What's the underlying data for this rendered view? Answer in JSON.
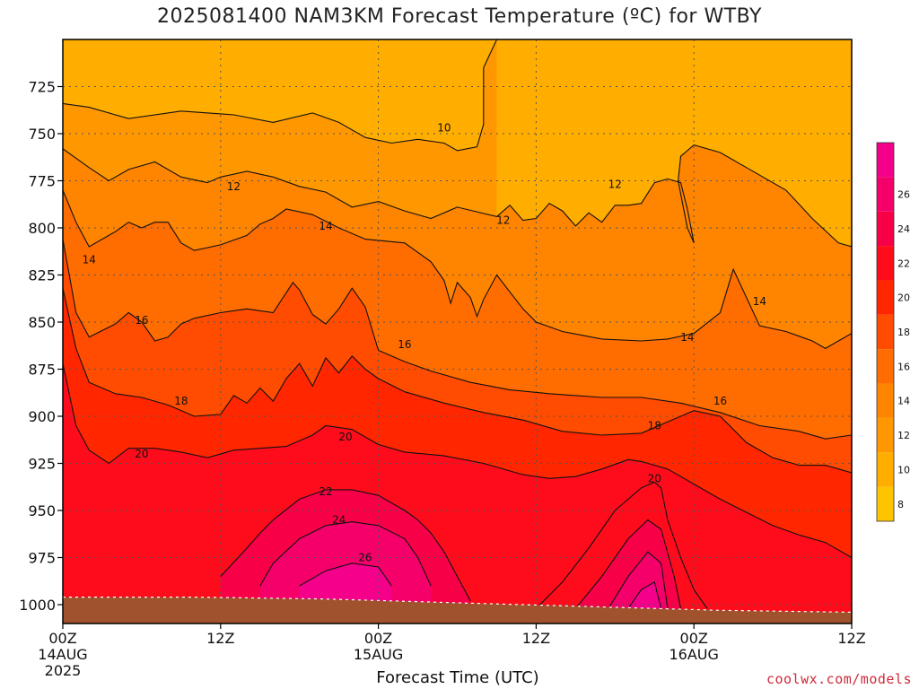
{
  "chart_data": {
    "type": "heatmap",
    "title": "2025081400 NAM3KM Forecast Temperature (ºC) for WTBY",
    "xlabel": "Forecast Time (UTC)",
    "ylabel": "",
    "y_axis": {
      "unit": "hPa",
      "inverted": true,
      "range": [
        700,
        1010
      ],
      "ticks": [
        725,
        750,
        775,
        800,
        825,
        850,
        875,
        900,
        925,
        950,
        975,
        1000
      ]
    },
    "x_axis": {
      "range_hours": [
        0,
        60
      ],
      "ticks": [
        {
          "hour": 0,
          "line1": "00Z",
          "line2": "14AUG",
          "line3": "2025"
        },
        {
          "hour": 12,
          "line1": "12Z",
          "line2": "",
          "line3": ""
        },
        {
          "hour": 24,
          "line1": "00Z",
          "line2": "15AUG",
          "line3": ""
        },
        {
          "hour": 36,
          "line1": "12Z",
          "line2": "",
          "line3": ""
        },
        {
          "hour": 48,
          "line1": "00Z",
          "line2": "16AUG",
          "line3": ""
        },
        {
          "hour": 60,
          "line1": "12Z",
          "line2": "",
          "line3": ""
        }
      ]
    },
    "grid": true,
    "colorbar": {
      "levels": [
        6,
        8,
        10,
        12,
        14,
        16,
        18,
        20,
        22,
        24,
        26,
        28
      ],
      "labels": [
        8,
        10,
        12,
        14,
        16,
        18,
        20,
        22,
        24,
        26
      ],
      "colors": [
        "#ffc400",
        "#ffae00",
        "#ff9800",
        "#ff8400",
        "#ff6c00",
        "#ff4c00",
        "#ff2600",
        "#ff0c1c",
        "#f80048",
        "#f5006a",
        "#f5008a"
      ]
    },
    "isotherms": [
      {
        "value": 10,
        "points": [
          [
            0,
            734
          ],
          [
            2,
            736
          ],
          [
            5,
            742
          ],
          [
            9,
            738
          ],
          [
            13,
            740
          ],
          [
            16,
            744
          ],
          [
            19,
            739
          ],
          [
            21,
            744
          ],
          [
            23,
            752
          ],
          [
            25,
            755
          ],
          [
            27,
            753
          ],
          [
            29,
            755
          ],
          [
            30,
            759
          ],
          [
            31.5,
            757
          ],
          [
            32,
            745
          ],
          [
            32,
            715
          ],
          [
            33,
            700
          ]
        ]
      },
      {
        "value": 12,
        "points": [
          [
            0,
            758
          ],
          [
            2,
            768
          ],
          [
            3.5,
            775
          ],
          [
            5,
            769
          ],
          [
            7,
            765
          ],
          [
            9,
            773
          ],
          [
            11,
            776
          ],
          [
            12,
            773
          ],
          [
            14,
            770
          ],
          [
            16,
            773
          ],
          [
            18,
            778
          ],
          [
            20,
            781
          ],
          [
            22,
            789
          ],
          [
            24,
            786
          ],
          [
            26,
            791
          ],
          [
            28,
            795
          ],
          [
            30,
            789
          ],
          [
            33,
            794
          ],
          [
            34,
            788
          ],
          [
            35,
            796
          ],
          [
            36,
            795
          ],
          [
            37,
            787
          ],
          [
            38,
            791
          ],
          [
            39,
            799
          ],
          [
            40,
            792
          ],
          [
            41,
            797
          ],
          [
            42,
            788
          ],
          [
            43,
            788
          ],
          [
            44,
            787
          ],
          [
            45,
            776
          ],
          [
            46,
            774
          ],
          [
            47,
            776
          ],
          [
            47.5,
            790
          ],
          [
            48,
            808
          ],
          [
            47.5,
            800
          ],
          [
            46.8,
            775
          ],
          [
            47,
            762
          ],
          [
            48,
            756
          ],
          [
            50,
            760
          ],
          [
            52,
            768
          ],
          [
            55,
            780
          ],
          [
            57,
            795
          ],
          [
            59,
            808
          ],
          [
            60,
            810
          ]
        ]
      },
      {
        "value": 14,
        "points": [
          [
            0,
            780
          ],
          [
            1,
            797
          ],
          [
            2,
            810
          ],
          [
            4,
            802
          ],
          [
            5,
            797
          ],
          [
            6,
            800
          ],
          [
            7,
            797
          ],
          [
            8,
            797
          ],
          [
            9,
            808
          ],
          [
            10,
            812
          ],
          [
            12,
            809
          ],
          [
            14,
            804
          ],
          [
            15,
            798
          ],
          [
            16,
            795
          ],
          [
            17,
            790
          ],
          [
            19,
            793
          ],
          [
            21,
            800
          ],
          [
            23,
            806
          ],
          [
            26,
            808
          ],
          [
            28,
            818
          ],
          [
            29,
            828
          ],
          [
            29.5,
            840
          ],
          [
            30,
            829
          ],
          [
            31,
            837
          ],
          [
            31.5,
            847
          ],
          [
            32,
            838
          ],
          [
            33,
            825
          ],
          [
            34,
            834
          ],
          [
            35,
            843
          ],
          [
            36,
            850
          ],
          [
            38,
            855
          ],
          [
            41,
            859
          ],
          [
            44,
            860
          ],
          [
            46,
            859
          ],
          [
            48,
            856
          ],
          [
            50,
            845
          ],
          [
            51,
            822
          ],
          [
            53,
            852
          ],
          [
            55,
            855
          ],
          [
            57,
            860
          ],
          [
            58,
            864
          ],
          [
            59,
            860
          ],
          [
            60,
            856
          ]
        ]
      },
      {
        "value": 16,
        "points": [
          [
            0,
            806
          ],
          [
            1,
            845
          ],
          [
            2,
            858
          ],
          [
            4,
            851
          ],
          [
            5,
            845
          ],
          [
            6,
            850
          ],
          [
            7,
            860
          ],
          [
            8,
            858
          ],
          [
            9,
            851
          ],
          [
            10,
            848
          ],
          [
            12,
            845
          ],
          [
            14,
            843
          ],
          [
            16,
            845
          ],
          [
            17.5,
            829
          ],
          [
            18,
            833
          ],
          [
            19,
            846
          ],
          [
            20,
            851
          ],
          [
            21,
            843
          ],
          [
            22,
            832
          ],
          [
            23,
            842
          ],
          [
            24,
            865
          ],
          [
            26,
            871
          ],
          [
            28,
            876
          ],
          [
            31,
            882
          ],
          [
            34,
            886
          ],
          [
            37,
            888
          ],
          [
            41,
            890
          ],
          [
            44,
            890
          ],
          [
            47,
            893
          ],
          [
            50,
            898
          ],
          [
            53,
            905
          ],
          [
            56,
            908
          ],
          [
            58,
            912
          ],
          [
            60,
            910
          ]
        ]
      },
      {
        "value": 18,
        "points": [
          [
            0,
            832
          ],
          [
            1,
            864
          ],
          [
            2,
            882
          ],
          [
            4,
            888
          ],
          [
            6,
            890
          ],
          [
            8,
            894
          ],
          [
            10,
            900
          ],
          [
            12,
            899
          ],
          [
            13,
            889
          ],
          [
            14,
            893
          ],
          [
            15,
            885
          ],
          [
            16,
            892
          ],
          [
            17,
            880
          ],
          [
            18,
            872
          ],
          [
            19,
            884
          ],
          [
            20,
            869
          ],
          [
            21,
            877
          ],
          [
            22,
            868
          ],
          [
            23,
            875
          ],
          [
            24,
            880
          ],
          [
            26,
            887
          ],
          [
            29,
            893
          ],
          [
            32,
            898
          ],
          [
            35,
            902
          ],
          [
            38,
            908
          ],
          [
            41,
            910
          ],
          [
            44,
            909
          ],
          [
            46,
            903
          ],
          [
            48,
            897
          ],
          [
            50,
            900
          ],
          [
            52,
            914
          ],
          [
            54,
            922
          ],
          [
            56,
            926
          ],
          [
            58,
            926
          ],
          [
            60,
            930
          ]
        ]
      },
      {
        "value": 20,
        "points": [
          [
            0,
            872
          ],
          [
            1,
            905
          ],
          [
            2,
            918
          ],
          [
            3.5,
            925
          ],
          [
            5,
            917
          ],
          [
            7,
            917
          ],
          [
            9,
            919
          ],
          [
            11,
            922
          ],
          [
            13,
            918
          ],
          [
            15,
            917
          ],
          [
            17,
            916
          ],
          [
            19,
            910
          ],
          [
            20,
            905
          ],
          [
            22,
            907
          ],
          [
            24,
            915
          ],
          [
            26,
            919
          ],
          [
            29,
            921
          ],
          [
            32,
            925
          ],
          [
            35,
            931
          ],
          [
            37,
            933
          ],
          [
            39,
            932
          ],
          [
            41,
            928
          ],
          [
            43,
            923
          ],
          [
            44,
            924
          ],
          [
            46,
            928
          ],
          [
            48,
            936
          ],
          [
            50,
            944
          ],
          [
            52,
            951
          ],
          [
            54,
            958
          ],
          [
            56,
            963
          ],
          [
            58,
            967
          ],
          [
            60,
            975
          ]
        ]
      },
      {
        "value": 22,
        "points": [
          [
            12,
            985
          ],
          [
            14,
            970
          ],
          [
            15,
            962
          ],
          [
            16,
            955
          ],
          [
            18,
            944
          ],
          [
            20,
            939
          ],
          [
            22,
            939
          ],
          [
            24,
            942
          ],
          [
            26,
            950
          ],
          [
            27,
            955
          ],
          [
            28,
            962
          ],
          [
            29,
            972
          ],
          [
            30,
            985
          ],
          [
            31,
            998
          ]
        ]
      },
      {
        "value": 24,
        "points": [
          [
            15,
            990
          ],
          [
            16,
            978
          ],
          [
            18,
            965
          ],
          [
            20,
            958
          ],
          [
            22,
            956
          ],
          [
            24,
            958
          ],
          [
            26,
            965
          ],
          [
            27,
            975
          ],
          [
            28,
            990
          ]
        ]
      },
      {
        "value": 26,
        "points": [
          [
            18,
            990
          ],
          [
            20,
            982
          ],
          [
            22,
            978
          ],
          [
            24,
            980
          ],
          [
            25,
            990
          ]
        ]
      },
      {
        "value": 20,
        "points": [
          [
            36,
            1002
          ],
          [
            38,
            988
          ],
          [
            40,
            970
          ],
          [
            42,
            950
          ],
          [
            44,
            938
          ],
          [
            45,
            935
          ],
          [
            45.5,
            938
          ],
          [
            46,
            955
          ],
          [
            47,
            975
          ],
          [
            48,
            992
          ],
          [
            49,
            1002
          ]
        ]
      },
      {
        "value": 22,
        "points": [
          [
            39,
            1002
          ],
          [
            41,
            985
          ],
          [
            43,
            965
          ],
          [
            44.5,
            955
          ],
          [
            45.5,
            960
          ],
          [
            46.5,
            985
          ],
          [
            47,
            1002
          ]
        ]
      },
      {
        "value": 24,
        "points": [
          [
            41.5,
            1002
          ],
          [
            43,
            985
          ],
          [
            44.5,
            972
          ],
          [
            45.5,
            978
          ],
          [
            46,
            1002
          ]
        ]
      },
      {
        "value": 26,
        "points": [
          [
            43,
            1002
          ],
          [
            44,
            992
          ],
          [
            45,
            988
          ],
          [
            45.5,
            1002
          ]
        ]
      }
    ],
    "contour_labels": [
      {
        "text": "10",
        "hour": 29,
        "p": 747
      },
      {
        "text": "12",
        "hour": 13,
        "p": 778
      },
      {
        "text": "12",
        "hour": 33.5,
        "p": 796
      },
      {
        "text": "12",
        "hour": 42,
        "p": 777
      },
      {
        "text": "14",
        "hour": 2,
        "p": 817
      },
      {
        "text": "14",
        "hour": 20,
        "p": 799
      },
      {
        "text": "14",
        "hour": 47.5,
        "p": 858
      },
      {
        "text": "14",
        "hour": 53,
        "p": 839
      },
      {
        "text": "16",
        "hour": 6,
        "p": 849
      },
      {
        "text": "16",
        "hour": 26,
        "p": 862
      },
      {
        "text": "16",
        "hour": 50,
        "p": 892
      },
      {
        "text": "18",
        "hour": 9,
        "p": 892
      },
      {
        "text": "18",
        "hour": 45,
        "p": 905
      },
      {
        "text": "20",
        "hour": 6,
        "p": 920
      },
      {
        "text": "20",
        "hour": 21.5,
        "p": 911
      },
      {
        "text": "20",
        "hour": 45,
        "p": 933
      },
      {
        "text": "22",
        "hour": 20,
        "p": 940
      },
      {
        "text": "24",
        "hour": 21,
        "p": 955
      },
      {
        "text": "26",
        "hour": 23,
        "p": 975
      }
    ],
    "surface_pressure": [
      [
        0,
        996
      ],
      [
        10,
        996
      ],
      [
        20,
        997
      ],
      [
        30,
        999
      ],
      [
        40,
        1001
      ],
      [
        50,
        1003
      ],
      [
        60,
        1004
      ]
    ]
  },
  "credit": "coolwx.com/models"
}
